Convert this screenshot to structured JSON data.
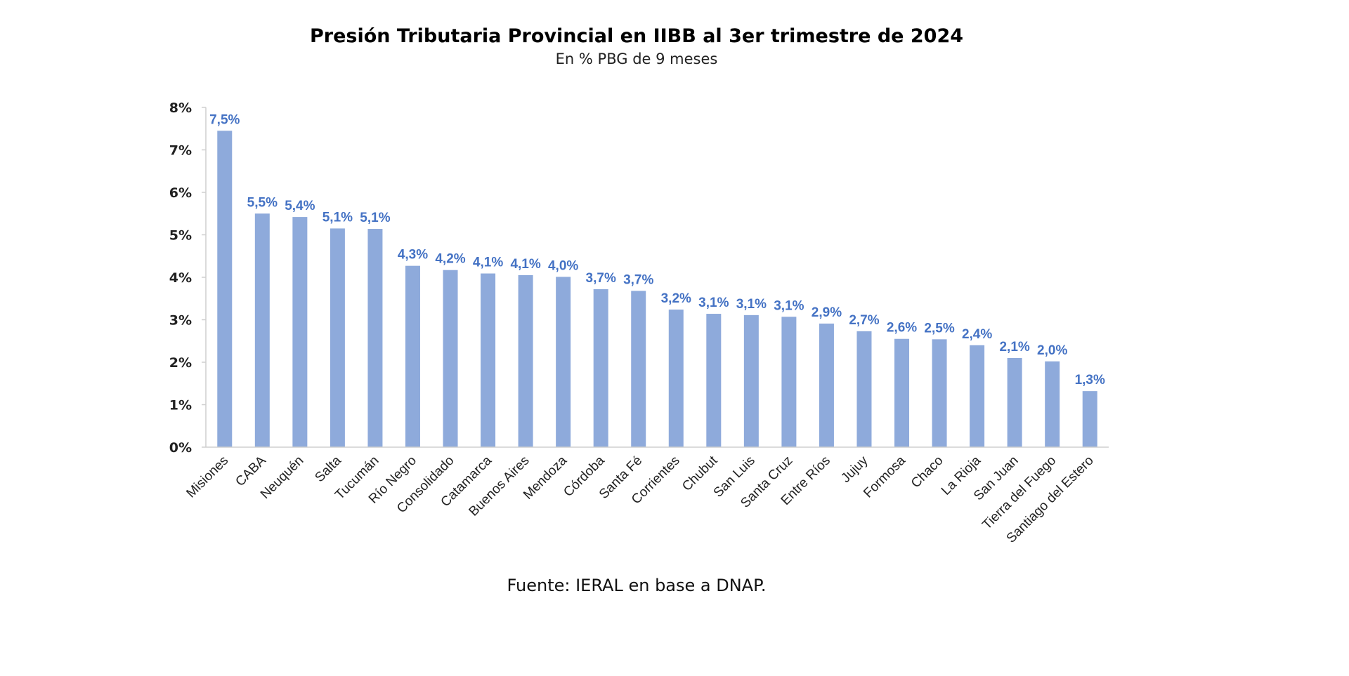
{
  "chart_data": {
    "type": "bar",
    "title": "Presión Tributaria Provincial en IIBB al 3er trimestre de 2024",
    "subtitle": "En % PBG de 9 meses",
    "source": "Fuente: IERAL en base a DNAP.",
    "categories": [
      "Misiones",
      "CABA",
      "Neuquén",
      "Salta",
      "Tucumán",
      "Río Negro",
      "Consolidado",
      "Catamarca",
      "Buenos Aires",
      "Mendoza",
      "Córdoba",
      "Santa Fé",
      "Corrientes",
      "Chubut",
      "San Luis",
      "Santa Cruz",
      "Entre Ríos",
      "Jujuy",
      "Formosa",
      "Chaco",
      "La Rioja",
      "San Juan",
      "Tierra del Fuego",
      "Santiago del Estero"
    ],
    "values": [
      7.45,
      5.5,
      5.42,
      5.15,
      5.14,
      4.27,
      4.17,
      4.09,
      4.05,
      4.01,
      3.72,
      3.68,
      3.24,
      3.14,
      3.11,
      3.07,
      2.91,
      2.73,
      2.55,
      2.54,
      2.4,
      2.1,
      2.02,
      1.32
    ],
    "data_labels": [
      "7,5%",
      "5,5%",
      "5,4%",
      "5,1%",
      "5,1%",
      "4,3%",
      "4,2%",
      "4,1%",
      "4,1%",
      "4,0%",
      "3,7%",
      "3,7%",
      "3,2%",
      "3,1%",
      "3,1%",
      "3,1%",
      "2,9%",
      "2,7%",
      "2,6%",
      "2,5%",
      "2,4%",
      "2,1%",
      "2,0%",
      "1,3%"
    ],
    "ylim": [
      0,
      8
    ],
    "yticks": [
      "0%",
      "1%",
      "2%",
      "3%",
      "4%",
      "5%",
      "6%",
      "7%",
      "8%"
    ],
    "xlabel": "",
    "ylabel": "",
    "grid": false,
    "legend": "none",
    "bar_color": "#8eaadb",
    "label_color": "#4472c4"
  }
}
